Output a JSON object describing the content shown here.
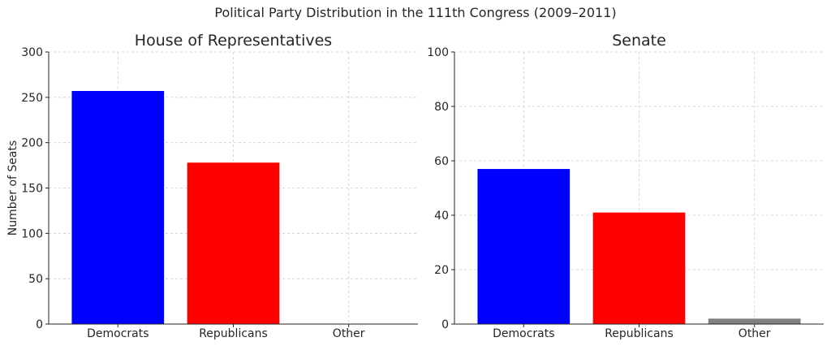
{
  "figure_title": "Political Party Distribution in the 111th Congress (2009–2011)",
  "colors": {
    "Democrats": "#0000ff",
    "Republicans": "#ff0000",
    "Other": "#808080"
  },
  "chart_data": [
    {
      "type": "bar",
      "title": "House of Representatives",
      "categories": [
        "Democrats",
        "Republicans",
        "Other"
      ],
      "values": [
        257,
        178,
        0
      ],
      "ylabel": "Number of Seats",
      "ylim": [
        0,
        300
      ],
      "yticks": [
        0,
        50,
        100,
        150,
        200,
        250,
        300
      ],
      "grid": true
    },
    {
      "type": "bar",
      "title": "Senate",
      "categories": [
        "Democrats",
        "Republicans",
        "Other"
      ],
      "values": [
        57,
        41,
        2
      ],
      "ylabel": "",
      "ylim": [
        0,
        100
      ],
      "yticks": [
        0,
        20,
        40,
        60,
        80,
        100
      ],
      "grid": true
    }
  ]
}
